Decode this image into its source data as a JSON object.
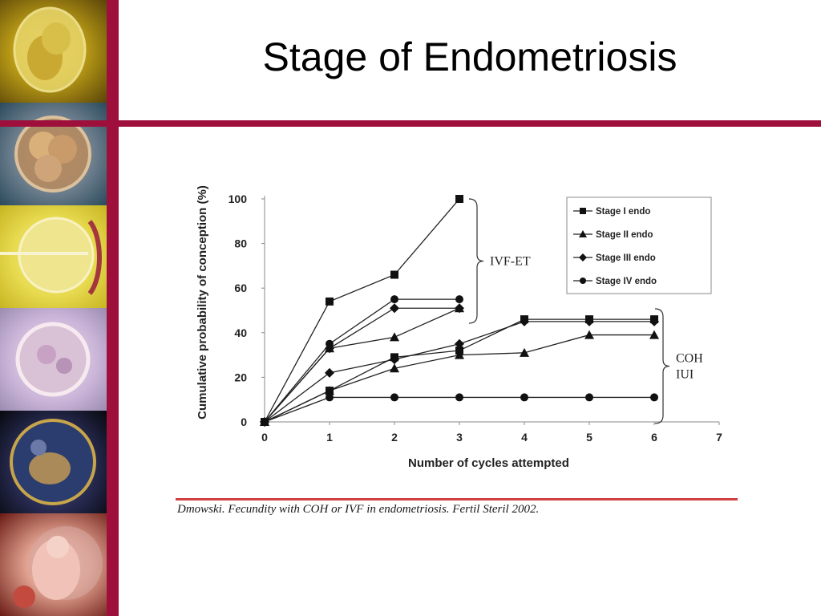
{
  "slide": {
    "title": "Stage of Endometriosis",
    "citation": "Dmowski. Fecundity with COH or IVF in endometriosis. Fertil Steril 2002.",
    "colors": {
      "accent_bar": "#9e0f3c",
      "citation_rule": "#d04040"
    },
    "sidebar_images": [
      "zygote-image",
      "early-embryo-image",
      "icsi-oocyte-image",
      "blastocyst-image",
      "fetus-in-amnion-image",
      "embryo-image"
    ]
  },
  "chart_data": {
    "type": "line",
    "title": "",
    "xlabel": "Number of cycles attempted",
    "ylabel": "Cumulative probability of conception (%)",
    "xlim": [
      0,
      7
    ],
    "ylim": [
      0,
      100
    ],
    "xticks": [
      "0",
      "1",
      "2",
      "3",
      "4",
      "5",
      "6",
      "7"
    ],
    "yticks": [
      "0",
      "20",
      "40",
      "60",
      "80",
      "100"
    ],
    "grid": false,
    "legend_position": "top-right",
    "brackets": [
      {
        "label": "IVF-ET",
        "from": 50,
        "to": 100,
        "side": "right"
      },
      {
        "label": "COH\nIUI",
        "from": 0,
        "to": 50,
        "side": "right"
      }
    ],
    "series": [
      {
        "name": "Stage I endo",
        "marker": "square",
        "group": "IVF-ET",
        "x": [
          0,
          1,
          2,
          3
        ],
        "y": [
          0,
          54,
          66,
          100
        ]
      },
      {
        "name": "Stage II endo",
        "marker": "triangle",
        "group": "IVF-ET",
        "x": [
          0,
          1,
          2,
          3
        ],
        "y": [
          0,
          33,
          38,
          51
        ]
      },
      {
        "name": "Stage III endo",
        "marker": "diamond",
        "group": "IVF-ET",
        "x": [
          0,
          1,
          2,
          3
        ],
        "y": [
          0,
          33,
          51,
          51
        ]
      },
      {
        "name": "Stage IV endo",
        "marker": "circle",
        "group": "IVF-ET",
        "x": [
          0,
          1,
          2,
          3
        ],
        "y": [
          0,
          35,
          55,
          55
        ]
      },
      {
        "name": "Stage I endo",
        "marker": "square",
        "group": "COH/IUI",
        "x": [
          0,
          1,
          2,
          3,
          4,
          5,
          6
        ],
        "y": [
          0,
          14,
          29,
          32,
          46,
          46,
          46
        ]
      },
      {
        "name": "Stage II endo",
        "marker": "triangle",
        "group": "COH/IUI",
        "x": [
          0,
          1,
          2,
          3,
          4,
          5,
          6
        ],
        "y": [
          0,
          14,
          24,
          30,
          31,
          39,
          39
        ]
      },
      {
        "name": "Stage III endo",
        "marker": "diamond",
        "group": "COH/IUI",
        "x": [
          0,
          1,
          2,
          3,
          4,
          5,
          6
        ],
        "y": [
          0,
          22,
          28,
          35,
          45,
          45,
          45
        ]
      },
      {
        "name": "Stage IV endo",
        "marker": "circle",
        "group": "COH/IUI",
        "x": [
          0,
          1,
          2,
          3,
          4,
          5,
          6
        ],
        "y": [
          0,
          11,
          11,
          11,
          11,
          11,
          11
        ]
      }
    ]
  }
}
